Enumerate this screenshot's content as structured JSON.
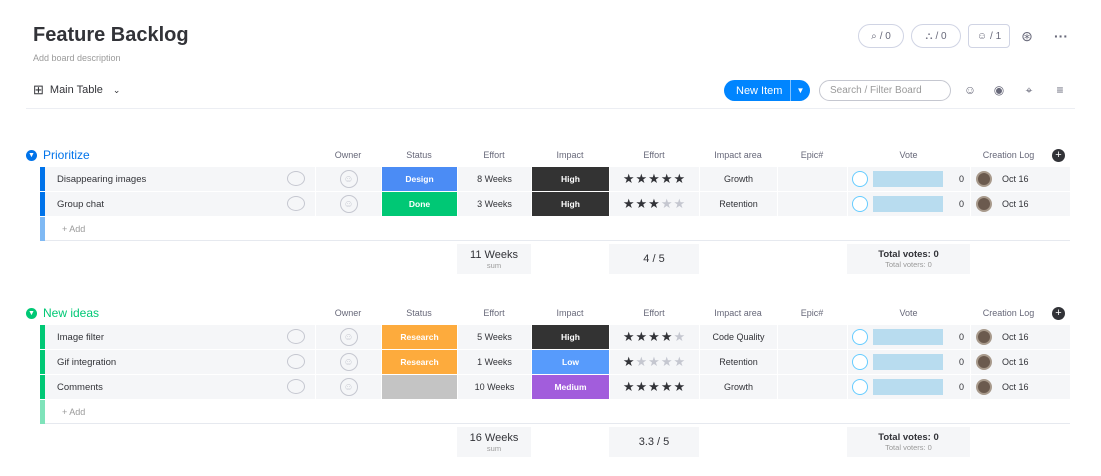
{
  "board": {
    "title": "Feature Backlog",
    "description": "Add board description",
    "view_label": "Main Table"
  },
  "header_counters": {
    "activity": "/ 0",
    "integrations": "/ 0",
    "members": "/ 1"
  },
  "toolbar": {
    "new_item_label": "New Item",
    "search_placeholder": "Search / Filter Board"
  },
  "columns": [
    "Owner",
    "Status",
    "Effort",
    "Impact",
    "Effort",
    "Impact area",
    "Epic#",
    "Vote",
    "Creation Log"
  ],
  "add_label": "+ Add",
  "groups": [
    {
      "name": "Prioritize",
      "color": "#0073ea",
      "rows": [
        {
          "name": "Disappearing images",
          "status": "Design",
          "status_color": "#4b8cf5",
          "effort": "8 Weeks",
          "impact": "High",
          "impact_color": "#333333",
          "rating": 5,
          "area": "Growth",
          "votes": "0",
          "date": "Oct 16"
        },
        {
          "name": "Group chat",
          "status": "Done",
          "status_color": "#00c875",
          "effort": "3 Weeks",
          "impact": "High",
          "impact_color": "#333333",
          "rating": 3,
          "area": "Retention",
          "votes": "0",
          "date": "Oct 16"
        }
      ],
      "summary": {
        "effort_total": "11 Weeks",
        "effort_sub": "sum",
        "rating_avg": "4 / 5",
        "votes_total": "Total votes: 0",
        "voters_total": "Total voters: 0"
      }
    },
    {
      "name": "New ideas",
      "color": "#00c875",
      "rows": [
        {
          "name": "Image filter",
          "status": "Research",
          "status_color": "#fdab3d",
          "effort": "5 Weeks",
          "impact": "High",
          "impact_color": "#333333",
          "rating": 4,
          "area": "Code Quality",
          "votes": "0",
          "date": "Oct 16"
        },
        {
          "name": "Gif integration",
          "status": "Research",
          "status_color": "#fdab3d",
          "effort": "1 Weeks",
          "impact": "Low",
          "impact_color": "#579bfc",
          "rating": 1,
          "area": "Retention",
          "votes": "0",
          "date": "Oct 16"
        },
        {
          "name": "Comments",
          "status": "",
          "status_color": "#c4c4c4",
          "effort": "10 Weeks",
          "impact": "Medium",
          "impact_color": "#a25ddc",
          "rating": 5,
          "area": "Growth",
          "votes": "0",
          "date": "Oct 16"
        }
      ],
      "summary": {
        "effort_total": "16 Weeks",
        "effort_sub": "sum",
        "rating_avg": "3.3 / 5",
        "votes_total": "Total votes: 0",
        "voters_total": "Total voters: 0"
      }
    }
  ]
}
